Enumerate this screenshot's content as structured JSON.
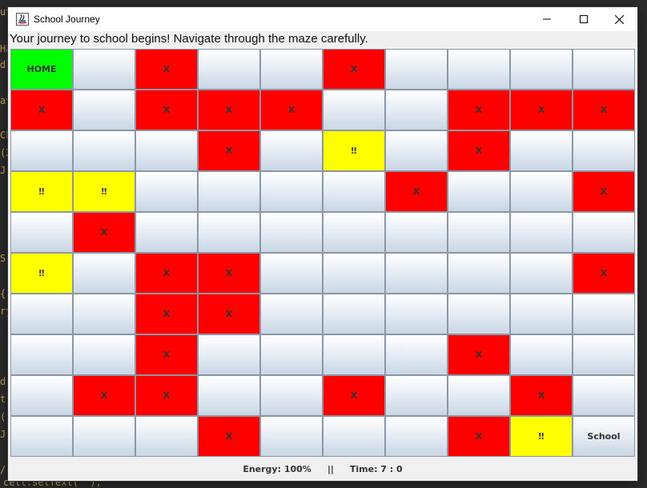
{
  "window": {
    "title": "School Journey",
    "minimize_icon": "minimize-icon",
    "maximize_icon": "maximize-icon",
    "close_icon": "close-icon"
  },
  "message": "Your journey to school begins! Navigate through the maze carefully.",
  "grid": {
    "rows": [
      [
        {
          "text": "HOME",
          "color": "green"
        },
        {
          "text": "",
          "color": "plain"
        },
        {
          "text": "X",
          "color": "red"
        },
        {
          "text": "",
          "color": "plain"
        },
        {
          "text": "",
          "color": "plain"
        },
        {
          "text": "X",
          "color": "red"
        },
        {
          "text": "",
          "color": "plain"
        },
        {
          "text": "",
          "color": "plain"
        },
        {
          "text": "",
          "color": "plain"
        },
        {
          "text": "",
          "color": "plain"
        }
      ],
      [
        {
          "text": "X",
          "color": "red"
        },
        {
          "text": "",
          "color": "plain"
        },
        {
          "text": "X",
          "color": "red"
        },
        {
          "text": "X",
          "color": "red"
        },
        {
          "text": "X",
          "color": "red"
        },
        {
          "text": "",
          "color": "plain"
        },
        {
          "text": "",
          "color": "plain"
        },
        {
          "text": "X",
          "color": "red"
        },
        {
          "text": "X",
          "color": "red"
        },
        {
          "text": "X",
          "color": "red"
        }
      ],
      [
        {
          "text": "",
          "color": "plain"
        },
        {
          "text": "",
          "color": "plain"
        },
        {
          "text": "",
          "color": "plain"
        },
        {
          "text": "X",
          "color": "red"
        },
        {
          "text": "",
          "color": "plain"
        },
        {
          "text": "‼",
          "color": "yellow"
        },
        {
          "text": "",
          "color": "plain"
        },
        {
          "text": "X",
          "color": "red"
        },
        {
          "text": "",
          "color": "plain"
        },
        {
          "text": "",
          "color": "plain"
        }
      ],
      [
        {
          "text": "‼",
          "color": "yellow"
        },
        {
          "text": "‼",
          "color": "yellow"
        },
        {
          "text": "",
          "color": "plain"
        },
        {
          "text": "",
          "color": "plain"
        },
        {
          "text": "",
          "color": "plain"
        },
        {
          "text": "",
          "color": "plain"
        },
        {
          "text": "X",
          "color": "red"
        },
        {
          "text": "",
          "color": "plain"
        },
        {
          "text": "",
          "color": "plain"
        },
        {
          "text": "X",
          "color": "red"
        }
      ],
      [
        {
          "text": "",
          "color": "plain"
        },
        {
          "text": "X",
          "color": "red"
        },
        {
          "text": "",
          "color": "plain"
        },
        {
          "text": "",
          "color": "plain"
        },
        {
          "text": "",
          "color": "plain"
        },
        {
          "text": "",
          "color": "plain"
        },
        {
          "text": "",
          "color": "plain"
        },
        {
          "text": "",
          "color": "plain"
        },
        {
          "text": "",
          "color": "plain"
        },
        {
          "text": "",
          "color": "plain"
        }
      ],
      [
        {
          "text": "‼",
          "color": "yellow"
        },
        {
          "text": "",
          "color": "plain"
        },
        {
          "text": "X",
          "color": "red"
        },
        {
          "text": "X",
          "color": "red"
        },
        {
          "text": "",
          "color": "plain"
        },
        {
          "text": "",
          "color": "plain"
        },
        {
          "text": "",
          "color": "plain"
        },
        {
          "text": "",
          "color": "plain"
        },
        {
          "text": "",
          "color": "plain"
        },
        {
          "text": "X",
          "color": "red"
        }
      ],
      [
        {
          "text": "",
          "color": "plain"
        },
        {
          "text": "",
          "color": "plain"
        },
        {
          "text": "X",
          "color": "red"
        },
        {
          "text": "X",
          "color": "red"
        },
        {
          "text": "",
          "color": "plain"
        },
        {
          "text": "",
          "color": "plain"
        },
        {
          "text": "",
          "color": "plain"
        },
        {
          "text": "",
          "color": "plain"
        },
        {
          "text": "",
          "color": "plain"
        },
        {
          "text": "",
          "color": "plain"
        }
      ],
      [
        {
          "text": "",
          "color": "plain"
        },
        {
          "text": "",
          "color": "plain"
        },
        {
          "text": "X",
          "color": "red"
        },
        {
          "text": "",
          "color": "plain"
        },
        {
          "text": "",
          "color": "plain"
        },
        {
          "text": "",
          "color": "plain"
        },
        {
          "text": "",
          "color": "plain"
        },
        {
          "text": "X",
          "color": "red"
        },
        {
          "text": "",
          "color": "plain"
        },
        {
          "text": "",
          "color": "plain"
        }
      ],
      [
        {
          "text": "",
          "color": "plain"
        },
        {
          "text": "X",
          "color": "red"
        },
        {
          "text": "X",
          "color": "red"
        },
        {
          "text": "",
          "color": "plain"
        },
        {
          "text": "",
          "color": "plain"
        },
        {
          "text": "X",
          "color": "red"
        },
        {
          "text": "",
          "color": "plain"
        },
        {
          "text": "",
          "color": "plain"
        },
        {
          "text": "X",
          "color": "red"
        },
        {
          "text": "",
          "color": "plain"
        }
      ],
      [
        {
          "text": "",
          "color": "plain"
        },
        {
          "text": "",
          "color": "plain"
        },
        {
          "text": "",
          "color": "plain"
        },
        {
          "text": "X",
          "color": "red"
        },
        {
          "text": "",
          "color": "plain"
        },
        {
          "text": "",
          "color": "plain"
        },
        {
          "text": "",
          "color": "plain"
        },
        {
          "text": "X",
          "color": "red"
        },
        {
          "text": "‼",
          "color": "yellow"
        },
        {
          "text": "School",
          "color": "plain"
        }
      ]
    ]
  },
  "status": {
    "energy": "Energy: 100%",
    "separator": "||",
    "time": "Time: 7 : 0"
  },
  "background_code": {
    "lines": [
      "ut",
      "Ha",
      "dl",
      "at",
      "Ch",
      "(X",
      "J",
      "S",
      "{",
      "ry",
      "d",
      "t",
      "(",
      "J",
      "/",
      "cell.setText(\"\");"
    ]
  },
  "colors": {
    "red": "#ff0000",
    "yellow": "#ffff00",
    "green": "#00ff00"
  }
}
